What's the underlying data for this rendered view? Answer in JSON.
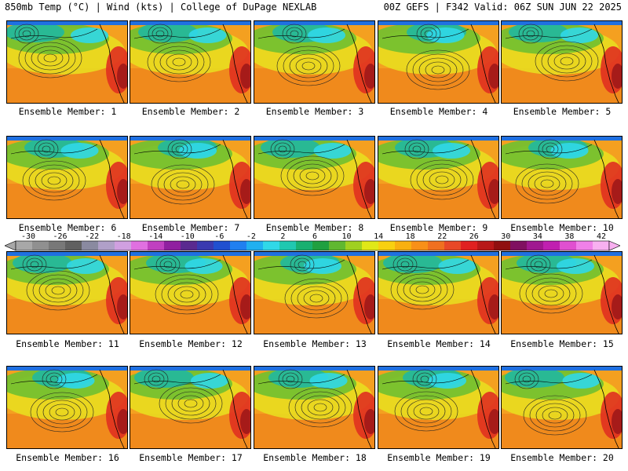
{
  "header": {
    "left": "850mb Temp (°C) | Wind (kts) | College of DuPage NEXLAB",
    "right": "00Z GEFS | F342 Valid: 06Z SUN JUN 22 2025"
  },
  "members": [
    "Ensemble Member: 1",
    "Ensemble Member: 2",
    "Ensemble Member: 3",
    "Ensemble Member: 4",
    "Ensemble Member: 5",
    "Ensemble Member: 6",
    "Ensemble Member: 7",
    "Ensemble Member: 8",
    "Ensemble Member: 9",
    "Ensemble Member: 10",
    "Ensemble Member: 11",
    "Ensemble Member: 12",
    "Ensemble Member: 13",
    "Ensemble Member: 14",
    "Ensemble Member: 15",
    "Ensemble Member: 16",
    "Ensemble Member: 17",
    "Ensemble Member: 18",
    "Ensemble Member: 19",
    "Ensemble Member: 20"
  ],
  "colorbar": {
    "ticks": [
      "-30",
      "-26",
      "-22",
      "-18",
      "-14",
      "-10",
      "-6",
      "-2",
      "2",
      "6",
      "10",
      "14",
      "18",
      "22",
      "26",
      "30",
      "34",
      "38",
      "42"
    ],
    "colors": [
      "#a8a8a8",
      "#909090",
      "#787878",
      "#606060",
      "#8a8aa0",
      "#b0a0c8",
      "#d0a0e0",
      "#e070e0",
      "#c040c0",
      "#9020a0",
      "#5a2a90",
      "#3a3ab0",
      "#2050d0",
      "#2080f0",
      "#20b0f0",
      "#30d8e8",
      "#20c8b0",
      "#18b070",
      "#20a040",
      "#60b830",
      "#a0d020",
      "#e0e818",
      "#f8d010",
      "#f8b010",
      "#f89018",
      "#f07020",
      "#e84828",
      "#e02020",
      "#b81818",
      "#901010",
      "#801060",
      "#a01890",
      "#c020b0",
      "#e050d0",
      "#f080e8",
      "#f8b0f0"
    ]
  }
}
